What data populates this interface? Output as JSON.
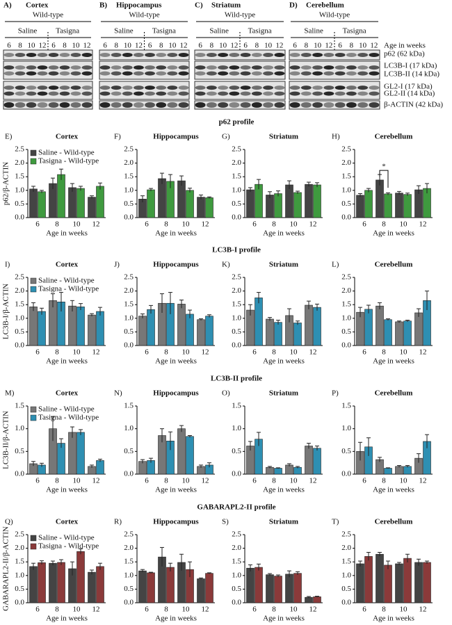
{
  "blots": {
    "panels": [
      {
        "label": "A)",
        "title": "Cortex"
      },
      {
        "label": "B)",
        "title": "Hippocampus"
      },
      {
        "label": "C)",
        "title": "Striatum"
      },
      {
        "label": "D)",
        "title": "Cerebellum"
      }
    ],
    "genotype": "Wild-type",
    "treatments": [
      "Saline",
      "Tasigna"
    ],
    "ages": [
      "6",
      "8",
      "10",
      "12"
    ],
    "row_labels": [
      "Age in weeks",
      "p62 (62 kDa)",
      "LC3B-I (17 kDa)",
      "LC3B-II (14 kDa)",
      "GL2-I (17 kDa)",
      "GL2-II (14 kDa)",
      "β-ACTIN (42 kDa)"
    ]
  },
  "sections": [
    "p62 profile",
    "LC3B-I profile",
    "LC3B-II profile",
    "GABARAPL2-II profile"
  ],
  "chart_data": [
    {
      "type": "bar",
      "panel_label": "E)",
      "title": "Cortex",
      "ylabel": "p62/β-ACTIN",
      "xlabel": "Age in weeks",
      "categories": [
        "6",
        "8",
        "10",
        "12"
      ],
      "legend": "upper left",
      "ylim": [
        0,
        2.5
      ],
      "yticks": [
        {
          "value": 0,
          "label": "0.0"
        },
        0.5,
        {
          "value": 1,
          "label": "1.0"
        },
        1.5,
        {
          "value": 2,
          "label": "2.0"
        },
        2.5
      ],
      "series": [
        {
          "name": "Saline - Wild-type",
          "color": "#444444",
          "values": [
            1.05,
            1.25,
            1.1,
            0.75
          ],
          "errors": [
            0.1,
            0.2,
            0.15,
            0.05
          ]
        },
        {
          "name": "Tasigna - Wild-type",
          "color": "#3f9a3f",
          "values": [
            0.95,
            1.58,
            1.07,
            1.15
          ],
          "errors": [
            0.05,
            0.2,
            0.08,
            0.12
          ]
        }
      ]
    },
    {
      "type": "bar",
      "panel_label": "F)",
      "title": "Hippocampus",
      "xlabel": "Age in weeks",
      "categories": [
        "6",
        "8",
        "10",
        "12"
      ],
      "ylim": [
        0,
        2.5
      ],
      "yticks": [
        {
          "value": 0,
          "label": "0.0"
        },
        0.5,
        {
          "value": 1,
          "label": "1.0"
        },
        1.5,
        {
          "value": 2,
          "label": "2.0"
        },
        2.5
      ],
      "series": [
        {
          "name": "Saline - Wild-type",
          "color": "#444444",
          "values": [
            0.68,
            1.43,
            1.35,
            0.75
          ],
          "errors": [
            0.12,
            0.2,
            0.18,
            0.08
          ]
        },
        {
          "name": "Tasigna - Wild-type",
          "color": "#3f9a3f",
          "values": [
            1.02,
            1.33,
            1.0,
            0.73
          ],
          "errors": [
            0.05,
            0.25,
            0.08,
            0.03
          ]
        }
      ]
    },
    {
      "type": "bar",
      "panel_label": "G)",
      "title": "Striatum",
      "xlabel": "Age in weeks",
      "categories": [
        "6",
        "8",
        "10",
        "12"
      ],
      "ylim": [
        0,
        2.5
      ],
      "yticks": [
        {
          "value": 0,
          "label": "0.0"
        },
        0.5,
        {
          "value": 1,
          "label": "1.0"
        },
        1.5,
        {
          "value": 2,
          "label": "2.0"
        },
        2.5
      ],
      "series": [
        {
          "name": "Saline - Wild-type",
          "color": "#444444",
          "values": [
            1.02,
            0.83,
            1.2,
            1.22
          ],
          "errors": [
            0.08,
            0.12,
            0.15,
            0.08
          ]
        },
        {
          "name": "Tasigna - Wild-type",
          "color": "#3f9a3f",
          "values": [
            1.22,
            0.88,
            0.92,
            1.2
          ],
          "errors": [
            0.18,
            0.1,
            0.05,
            0.08
          ]
        }
      ]
    },
    {
      "type": "bar",
      "panel_label": "H)",
      "title": "Cerebellum",
      "xlabel": "Age in weeks",
      "categories": [
        "6",
        "8",
        "10",
        "12"
      ],
      "ylim": [
        0,
        2.5
      ],
      "yticks": [
        {
          "value": 0,
          "label": "0.0"
        },
        0.5,
        {
          "value": 1,
          "label": "1.0"
        },
        1.5,
        {
          "value": 2,
          "label": "2.0"
        },
        2.5
      ],
      "annotations": [
        {
          "text": "*",
          "category": "8"
        }
      ],
      "series": [
        {
          "name": "Saline - Wild-type",
          "color": "#444444",
          "values": [
            0.82,
            1.38,
            0.9,
            1.02
          ],
          "errors": [
            0.06,
            0.2,
            0.06,
            0.15
          ]
        },
        {
          "name": "Tasigna - Wild-type",
          "color": "#3f9a3f",
          "values": [
            1.0,
            0.87,
            0.85,
            1.07
          ],
          "errors": [
            0.07,
            0.04,
            0.05,
            0.18
          ]
        }
      ]
    },
    {
      "type": "bar",
      "panel_label": "I)",
      "title": "Cortex",
      "ylabel": "LC3B-I/β-ACTIN",
      "xlabel": "Age in weeks",
      "categories": [
        "6",
        "8",
        "10",
        "12"
      ],
      "legend": "upper left",
      "ylim": [
        0,
        2.5
      ],
      "yticks": [
        {
          "value": 0,
          "label": "0.0"
        },
        0.5,
        {
          "value": 1,
          "label": "1.0"
        },
        1.5,
        {
          "value": 2,
          "label": "2.0"
        },
        2.5
      ],
      "series": [
        {
          "name": "Saline - Wild-type",
          "color": "#777777",
          "values": [
            1.42,
            1.65,
            1.45,
            1.12
          ],
          "errors": [
            0.15,
            0.25,
            0.2,
            0.05
          ]
        },
        {
          "name": "Tasigna - Wild-type",
          "color": "#2e8fb2",
          "values": [
            1.25,
            1.6,
            1.42,
            1.25
          ],
          "errors": [
            0.12,
            0.35,
            0.12,
            0.15
          ]
        }
      ]
    },
    {
      "type": "bar",
      "panel_label": "J)",
      "title": "Hippocampus",
      "xlabel": "Age in weeks",
      "categories": [
        "6",
        "8",
        "10",
        "12"
      ],
      "ylim": [
        0,
        2.5
      ],
      "yticks": [
        {
          "value": 0,
          "label": "0.0"
        },
        0.5,
        {
          "value": 1,
          "label": "1.0"
        },
        1.5,
        {
          "value": 2,
          "label": "2.0"
        },
        2.5
      ],
      "series": [
        {
          "name": "Saline - Wild-type",
          "color": "#777777",
          "values": [
            1.08,
            1.55,
            1.52,
            0.95
          ],
          "errors": [
            0.08,
            0.35,
            0.15,
            0.03
          ]
        },
        {
          "name": "Tasigna - Wild-type",
          "color": "#2e8fb2",
          "values": [
            1.32,
            1.55,
            1.15,
            1.08
          ],
          "errors": [
            0.15,
            0.4,
            0.15,
            0.05
          ]
        }
      ]
    },
    {
      "type": "bar",
      "panel_label": "K)",
      "title": "Striatum",
      "xlabel": "Age in weeks",
      "categories": [
        "6",
        "8",
        "10",
        "12"
      ],
      "ylim": [
        0,
        2.5
      ],
      "yticks": [
        {
          "value": 0,
          "label": "0.0"
        },
        0.5,
        {
          "value": 1,
          "label": "1.0"
        },
        1.5,
        {
          "value": 2,
          "label": "2.0"
        },
        2.5
      ],
      "series": [
        {
          "name": "Saline - Wild-type",
          "color": "#777777",
          "values": [
            1.3,
            0.97,
            1.1,
            1.48
          ],
          "errors": [
            0.2,
            0.06,
            0.25,
            0.15
          ]
        },
        {
          "name": "Tasigna - Wild-type",
          "color": "#2e8fb2",
          "values": [
            1.75,
            0.85,
            0.83,
            1.4
          ],
          "errors": [
            0.2,
            0.08,
            0.07,
            0.12
          ]
        }
      ]
    },
    {
      "type": "bar",
      "panel_label": "L)",
      "title": "Cerebellum",
      "xlabel": "Age in weeks",
      "categories": [
        "6",
        "8",
        "10",
        "12"
      ],
      "ylim": [
        0,
        2.5
      ],
      "yticks": [
        {
          "value": 0,
          "label": "0.0"
        },
        0.5,
        {
          "value": 1,
          "label": "1.0"
        },
        1.5,
        {
          "value": 2,
          "label": "2.0"
        },
        2.5
      ],
      "series": [
        {
          "name": "Saline - Wild-type",
          "color": "#777777",
          "values": [
            1.22,
            1.45,
            0.87,
            1.2
          ],
          "errors": [
            0.18,
            0.12,
            0.03,
            0.15
          ]
        },
        {
          "name": "Tasigna - Wild-type",
          "color": "#2e8fb2",
          "values": [
            1.33,
            0.95,
            0.9,
            1.65
          ],
          "errors": [
            0.15,
            0.03,
            0.03,
            0.35
          ]
        }
      ]
    },
    {
      "type": "bar",
      "panel_label": "M)",
      "title": "Cortex",
      "ylabel": "LC3B-II/β-ACTIN",
      "xlabel": "Age in weeks",
      "categories": [
        "6",
        "8",
        "10",
        "12"
      ],
      "legend": "upper left",
      "ylim": [
        0,
        1.5
      ],
      "yticks": [
        {
          "value": 0,
          "label": "0.0"
        },
        0.5,
        {
          "value": 1,
          "label": "1.0"
        },
        1.5
      ],
      "series": [
        {
          "name": "Saline - Wild-type",
          "color": "#777777",
          "values": [
            0.23,
            1.0,
            0.92,
            0.17
          ],
          "errors": [
            0.05,
            0.27,
            0.12,
            0.03
          ]
        },
        {
          "name": "Tasigna - Wild-type",
          "color": "#2e8fb2",
          "values": [
            0.2,
            0.68,
            0.92,
            0.3
          ],
          "errors": [
            0.04,
            0.1,
            0.06,
            0.03
          ]
        }
      ]
    },
    {
      "type": "bar",
      "panel_label": "N)",
      "title": "Hippocampus",
      "xlabel": "Age in weeks",
      "categories": [
        "6",
        "8",
        "10",
        "12"
      ],
      "ylim": [
        0,
        1.5
      ],
      "yticks": [
        {
          "value": 0,
          "label": "0.0"
        },
        0.5,
        {
          "value": 1,
          "label": "1.0"
        },
        1.5
      ],
      "series": [
        {
          "name": "Saline - Wild-type",
          "color": "#777777",
          "values": [
            0.28,
            0.85,
            1.0,
            0.17
          ],
          "errors": [
            0.04,
            0.15,
            0.07,
            0.03
          ]
        },
        {
          "name": "Tasigna - Wild-type",
          "color": "#2e8fb2",
          "values": [
            0.3,
            0.73,
            0.83,
            0.2
          ],
          "errors": [
            0.05,
            0.2,
            0.02,
            0.05
          ]
        }
      ]
    },
    {
      "type": "bar",
      "panel_label": "O)",
      "title": "Striatum",
      "xlabel": "Age in weeks",
      "categories": [
        "6",
        "8",
        "10",
        "12"
      ],
      "ylim": [
        0,
        1.5
      ],
      "yticks": [
        {
          "value": 0,
          "label": "0.0"
        },
        0.5,
        {
          "value": 1,
          "label": "1.0"
        },
        1.5
      ],
      "series": [
        {
          "name": "Saline - Wild-type",
          "color": "#777777",
          "values": [
            0.62,
            0.15,
            0.2,
            0.62
          ],
          "errors": [
            0.1,
            0.02,
            0.03,
            0.06
          ]
        },
        {
          "name": "Tasigna - Wild-type",
          "color": "#2e8fb2",
          "values": [
            0.77,
            0.13,
            0.15,
            0.57
          ],
          "errors": [
            0.15,
            0.01,
            0.02,
            0.05
          ]
        }
      ]
    },
    {
      "type": "bar",
      "panel_label": "P)",
      "title": "Cerebellum",
      "xlabel": "Age in weeks",
      "categories": [
        "6",
        "8",
        "10",
        "12"
      ],
      "ylim": [
        0,
        1.5
      ],
      "yticks": [
        {
          "value": 0,
          "label": "0.0"
        },
        0.5,
        {
          "value": 1,
          "label": "1.0"
        },
        1.5
      ],
      "series": [
        {
          "name": "Saline - Wild-type",
          "color": "#777777",
          "values": [
            0.5,
            0.32,
            0.17,
            0.35
          ],
          "errors": [
            0.2,
            0.05,
            0.02,
            0.1
          ]
        },
        {
          "name": "Tasigna - Wild-type",
          "color": "#2e8fb2",
          "values": [
            0.6,
            0.13,
            0.17,
            0.72
          ],
          "errors": [
            0.2,
            0.01,
            0.02,
            0.15
          ]
        }
      ]
    },
    {
      "type": "bar",
      "panel_label": "Q)",
      "title": "Cortex",
      "ylabel": "GABARAPL2-II/β-ACTIN",
      "xlabel": "Age in weeks",
      "categories": [
        "6",
        "8",
        "10",
        "12"
      ],
      "legend": "upper left",
      "ylim": [
        0,
        2.5
      ],
      "yticks": [
        {
          "value": 0,
          "label": "0.0"
        },
        0.5,
        {
          "value": 1,
          "label": "1.0"
        },
        1.5,
        {
          "value": 2,
          "label": "2.0"
        },
        2.5
      ],
      "series": [
        {
          "name": "Saline - Wild-type",
          "color": "#444444",
          "values": [
            1.33,
            1.45,
            1.25,
            1.12
          ],
          "errors": [
            0.12,
            0.08,
            0.25,
            0.08
          ]
        },
        {
          "name": "Tasigna - Wild-type",
          "color": "#8b3a3a",
          "values": [
            1.47,
            1.48,
            1.88,
            1.33
          ],
          "errors": [
            0.07,
            0.1,
            0.1,
            0.12
          ]
        }
      ]
    },
    {
      "type": "bar",
      "panel_label": "R)",
      "title": "Hippocampus",
      "xlabel": "Age in weeks",
      "categories": [
        "6",
        "8",
        "10",
        "12"
      ],
      "ylim": [
        0,
        2.5
      ],
      "yticks": [
        {
          "value": 0,
          "label": "0.0"
        },
        0.5,
        {
          "value": 1,
          "label": "1.0"
        },
        1.5,
        {
          "value": 2,
          "label": "2.0"
        },
        2.5
      ],
      "series": [
        {
          "name": "Saline - Wild-type",
          "color": "#444444",
          "values": [
            1.17,
            1.68,
            1.48,
            0.88
          ],
          "errors": [
            0.05,
            0.35,
            0.3,
            0.03
          ]
        },
        {
          "name": "Tasigna - Wild-type",
          "color": "#8b3a3a",
          "values": [
            1.1,
            1.3,
            1.22,
            1.08
          ],
          "errors": [
            0.02,
            0.15,
            0.28,
            0.02
          ]
        }
      ]
    },
    {
      "type": "bar",
      "panel_label": "S)",
      "title": "Striatum",
      "xlabel": "Age in weeks",
      "categories": [
        "6",
        "8",
        "10",
        "12"
      ],
      "ylim": [
        0,
        2.5
      ],
      "yticks": [
        {
          "value": 0,
          "label": "0.0"
        },
        0.5,
        {
          "value": 1,
          "label": "1.0"
        },
        1.5,
        {
          "value": 2,
          "label": "2.0"
        },
        2.5
      ],
      "series": [
        {
          "name": "Saline - Wild-type",
          "color": "#444444",
          "values": [
            1.27,
            1.03,
            1.05,
            0.2
          ],
          "errors": [
            0.12,
            0.04,
            0.12,
            0.03
          ]
        },
        {
          "name": "Tasigna - Wild-type",
          "color": "#8b3a3a",
          "values": [
            1.3,
            0.98,
            1.08,
            0.22
          ],
          "errors": [
            0.12,
            0.04,
            0.06,
            0.02
          ]
        }
      ]
    },
    {
      "type": "bar",
      "panel_label": "T)",
      "title": "Cerebellum",
      "xlabel": "Age in weeks",
      "categories": [
        "6",
        "8",
        "10",
        "12"
      ],
      "ylim": [
        0,
        2.5
      ],
      "yticks": [
        {
          "value": 0,
          "label": "0.0"
        },
        0.5,
        {
          "value": 1,
          "label": "1.0"
        },
        1.5,
        {
          "value": 2,
          "label": "2.0"
        },
        2.5
      ],
      "series": [
        {
          "name": "Saline - Wild-type",
          "color": "#444444",
          "values": [
            1.43,
            1.78,
            1.43,
            1.48
          ],
          "errors": [
            0.1,
            0.07,
            0.05,
            0.12
          ]
        },
        {
          "name": "Tasigna - Wild-type",
          "color": "#8b3a3a",
          "values": [
            1.7,
            1.38,
            1.63,
            1.48
          ],
          "errors": [
            0.15,
            0.15,
            0.15,
            0.05
          ]
        }
      ]
    }
  ]
}
